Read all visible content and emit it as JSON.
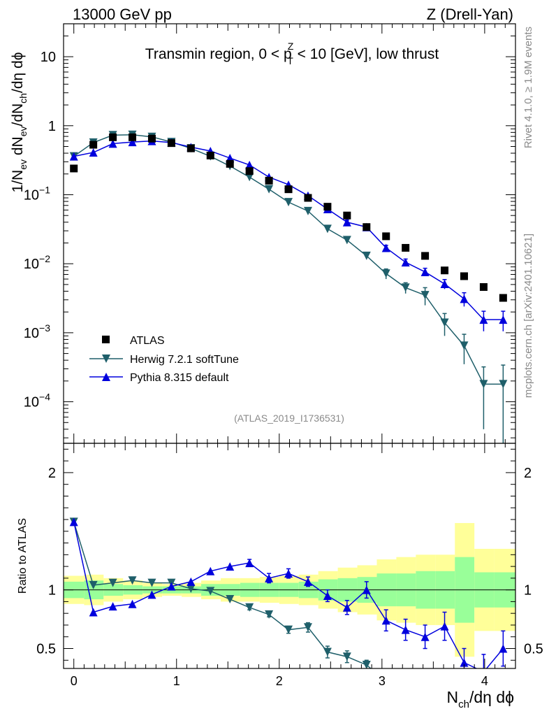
{
  "header": {
    "energy_label": "13000 GeV pp",
    "process_label": "Z (Drell-Yan)",
    "side_label_top": "Rivet 4.1.0, ≥ 1.9M events",
    "side_label_bottom": "mcplots.cern.ch [arXiv:2401.10621]",
    "analysis_label": "(ATLAS_2019_I1736531)"
  },
  "chart_data": {
    "type": "scatter",
    "title_parts": [
      "Transmin region, 0 < p",
      "Z",
      "T",
      " < 10 [GeV], low thrust"
    ],
    "xlabel_parts": [
      "N",
      "ch",
      "/dη dϕ"
    ],
    "ylabel_parts": [
      "1/N",
      "ev",
      " dN",
      "ev",
      "/dN",
      "ch",
      "/dη dϕ"
    ],
    "ratio_ylabel": "Ratio to ATLAS",
    "xlim": [
      -0.1,
      4.3
    ],
    "ylim_main": [
      2.5e-05,
      30
    ],
    "ylim_ratio": [
      0.33,
      2.25
    ],
    "x_ticks": [
      {
        "v": 0,
        "t": "0"
      },
      {
        "v": 1,
        "t": "1"
      },
      {
        "v": 2,
        "t": "2"
      },
      {
        "v": 3,
        "t": "3"
      },
      {
        "v": 4,
        "t": "4"
      }
    ],
    "y_ticks_main": [
      {
        "v": 10,
        "base": "10",
        "exp": ""
      },
      {
        "v": 1,
        "base": "1",
        "exp": ""
      },
      {
        "v": 0.1,
        "base": "10",
        "exp": "−1"
      },
      {
        "v": 0.01,
        "base": "10",
        "exp": "−2"
      },
      {
        "v": 0.001,
        "base": "10",
        "exp": "−3"
      },
      {
        "v": 0.0001,
        "base": "10",
        "exp": "−4"
      }
    ],
    "y_ticks_ratio": [
      {
        "v": 2,
        "t": "2"
      },
      {
        "v": 1,
        "t": "1"
      },
      {
        "v": 0.5,
        "t": "0.5"
      }
    ],
    "x": [
      0.0,
      0.19,
      0.38,
      0.57,
      0.76,
      0.95,
      1.14,
      1.33,
      1.52,
      1.71,
      1.9,
      2.09,
      2.28,
      2.47,
      2.66,
      2.85,
      3.04,
      3.23,
      3.42,
      3.61,
      3.8,
      3.99,
      4.18
    ],
    "band_edges": [
      -0.1,
      0.1,
      0.29,
      0.48,
      0.67,
      0.86,
      1.05,
      1.24,
      1.43,
      1.62,
      1.81,
      2.0,
      2.19,
      2.38,
      2.57,
      2.76,
      2.95,
      3.14,
      3.33,
      3.52,
      3.71,
      3.9,
      4.09,
      4.3
    ],
    "band_stat": [
      0.07,
      0.08,
      0.05,
      0.04,
      0.03,
      0.03,
      0.03,
      0.05,
      0.05,
      0.06,
      0.06,
      0.06,
      0.07,
      0.09,
      0.1,
      0.11,
      0.14,
      0.14,
      0.16,
      0.16,
      0.28,
      0.15,
      0.15,
      0.15
    ],
    "band_total": [
      0.12,
      0.13,
      0.1,
      0.08,
      0.06,
      0.05,
      0.06,
      0.08,
      0.1,
      0.1,
      0.11,
      0.12,
      0.13,
      0.16,
      0.19,
      0.21,
      0.26,
      0.28,
      0.3,
      0.3,
      0.57,
      0.35,
      0.35,
      0.35
    ],
    "legend": [
      {
        "name": "ATLAS",
        "marker": "square",
        "color": "#000000"
      },
      {
        "name": "Herwig 7.2.1 softTune",
        "marker": "triangle-down",
        "color": "#1f5f6a"
      },
      {
        "name": "Pythia 8.315 default",
        "marker": "triangle-up",
        "color": "#0000dd"
      }
    ],
    "series": [
      {
        "name": "ATLAS",
        "values": [
          0.24,
          0.53,
          0.68,
          0.68,
          0.65,
          0.56,
          0.47,
          0.37,
          0.28,
          0.22,
          0.16,
          0.12,
          0.09,
          0.067,
          0.05,
          0.034,
          0.025,
          0.017,
          0.013,
          0.008,
          0.0066,
          0.0046,
          0.0032
        ]
      },
      {
        "name": "Herwig 7.2.1 softTune",
        "values": [
          0.36,
          0.57,
          0.73,
          0.74,
          0.69,
          0.58,
          0.47,
          0.36,
          0.26,
          0.18,
          0.12,
          0.078,
          0.058,
          0.032,
          0.022,
          0.013,
          0.0072,
          0.0045,
          0.0035,
          0.0014,
          0.00065,
          0.00018,
          0.00018
        ],
        "err": [
          0,
          0,
          0,
          0,
          0,
          0,
          0,
          0,
          0,
          0,
          0,
          0,
          0,
          0.002,
          0.0015,
          0.001,
          0.0012,
          0.0008,
          0.001,
          0.0005,
          0.0003,
          0.00014,
          0.00016
        ]
      },
      {
        "name": "Pythia 8.315 default",
        "values": [
          0.36,
          0.41,
          0.55,
          0.58,
          0.6,
          0.57,
          0.49,
          0.43,
          0.34,
          0.27,
          0.18,
          0.14,
          0.097,
          0.062,
          0.04,
          0.034,
          0.017,
          0.0105,
          0.0076,
          0.0051,
          0.0031,
          0.00155,
          0.00155
        ],
        "err": [
          0,
          0,
          0,
          0,
          0,
          0,
          0,
          0,
          0,
          0,
          0,
          0,
          0,
          0.003,
          0.003,
          0.002,
          0.0015,
          0.0012,
          0.001,
          0.0008,
          0.0007,
          0.0005,
          0.0005
        ]
      }
    ],
    "ratio_series": [
      {
        "name": "Herwig 7.2.1 softTune",
        "values": [
          1.58,
          1.04,
          1.06,
          1.08,
          1.06,
          1.06,
          1.01,
          0.99,
          0.92,
          0.85,
          0.79,
          0.66,
          0.68,
          0.47,
          0.43,
          0.36,
          null,
          null,
          null,
          null,
          null,
          null,
          null
        ],
        "err": [
          0,
          0,
          0,
          0,
          0,
          0,
          0,
          0,
          0,
          0.02,
          0.02,
          0.03,
          0.04,
          0.05,
          0.05,
          0.04,
          0,
          0,
          0,
          0,
          0,
          0,
          0
        ]
      },
      {
        "name": "Pythia 8.315 default",
        "values": [
          1.58,
          0.81,
          0.86,
          0.88,
          0.96,
          1.03,
          1.07,
          1.16,
          1.2,
          1.23,
          1.1,
          1.14,
          1.07,
          0.95,
          0.85,
          1.0,
          0.74,
          0.66,
          0.6,
          0.69,
          0.38,
          0.3,
          0.5
        ],
        "err": [
          0,
          0,
          0,
          0,
          0,
          0,
          0,
          0,
          0,
          0.03,
          0.04,
          0.04,
          0.04,
          0.05,
          0.06,
          0.07,
          0.09,
          0.09,
          0.1,
          0.12,
          0.12,
          0.15,
          0.15
        ]
      }
    ]
  }
}
